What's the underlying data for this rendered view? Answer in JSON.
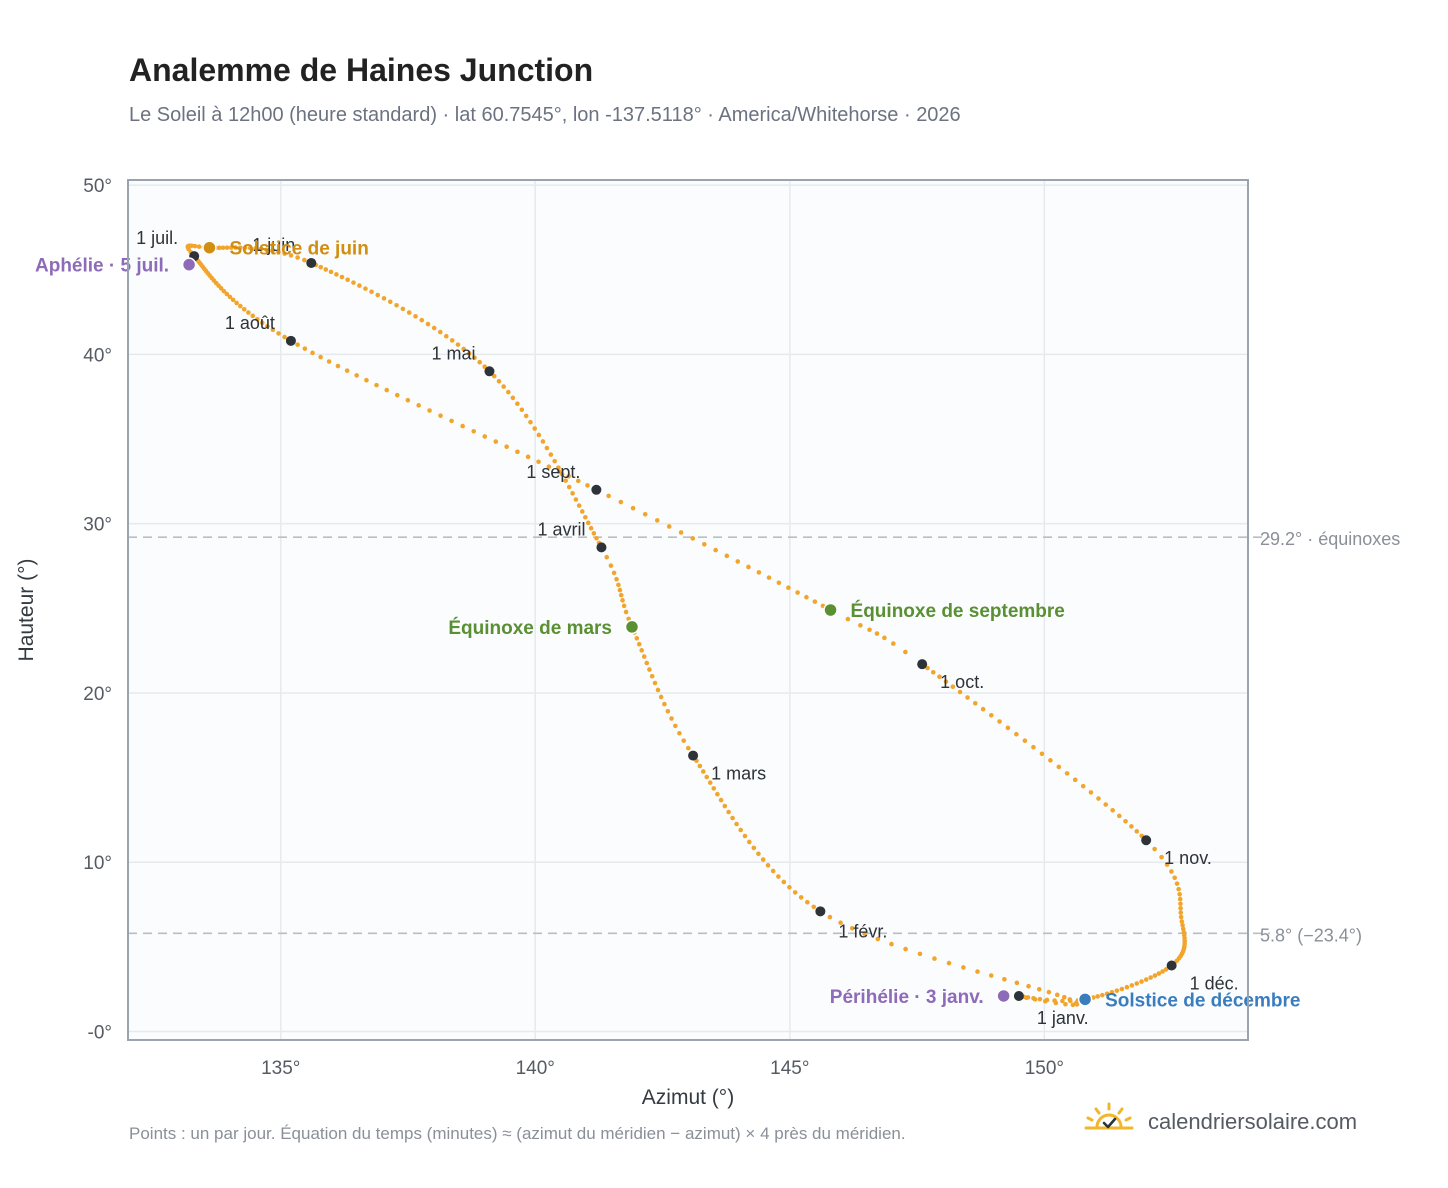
{
  "header": {
    "title": "Analemme de Haines Junction",
    "subtitle": "Le Soleil à 12h00 (heure standard) · lat 60.7545°, lon -137.5118° · America/Whitehorse · 2026"
  },
  "footer": {
    "note": "Points : un par jour. Équation du temps (minutes) ≈ (azimut du méridien − azimut) × 4 près du méridien.",
    "brand": "calendriersolaire.com",
    "brand_icon": "sun-check-icon"
  },
  "colors": {
    "curve": "#f2a52a",
    "month_marker": "#2d3338",
    "equinox": "#5a8f33",
    "june_solstice": "#d18e10",
    "december_solstice": "#3a7dbf",
    "apsis": "#8e6bb8",
    "grid": "#e6eaef",
    "plot_background": "#fafcfe",
    "frame": "#9aa4ae",
    "reference_line": "#b8bec6"
  },
  "chart_data": {
    "type": "scatter",
    "xlabel": "Azimut (°)",
    "ylabel": "Hauteur (°)",
    "xlim": [
      132,
      154
    ],
    "ylim": [
      -0.5,
      50.3
    ],
    "x_ticks": [
      135,
      140,
      145,
      150
    ],
    "x_tick_labels": [
      "135°",
      "140°",
      "145°",
      "150°"
    ],
    "y_ticks": [
      0,
      10,
      20,
      30,
      40,
      50
    ],
    "y_tick_labels": [
      "-0°",
      "10°",
      "20°",
      "30°",
      "40°",
      "50°"
    ],
    "grid": true,
    "curve_anchors": [
      {
        "day": 0,
        "az": 149.5,
        "alt": 2.1
      },
      {
        "day": 10,
        "az": 150.5,
        "alt": 1.9
      },
      {
        "day": 31,
        "az": 145.6,
        "alt": 7.1
      },
      {
        "day": 59,
        "az": 143.1,
        "alt": 16.3
      },
      {
        "day": 78,
        "az": 141.9,
        "alt": 23.9
      },
      {
        "day": 90,
        "az": 141.3,
        "alt": 28.6
      },
      {
        "day": 120,
        "az": 139.1,
        "alt": 39.0
      },
      {
        "day": 151,
        "az": 135.6,
        "alt": 45.4
      },
      {
        "day": 171,
        "az": 133.6,
        "alt": 46.3
      },
      {
        "day": 181,
        "az": 133.3,
        "alt": 45.8
      },
      {
        "day": 212,
        "az": 135.2,
        "alt": 40.8
      },
      {
        "day": 243,
        "az": 141.2,
        "alt": 32.0
      },
      {
        "day": 265,
        "az": 145.8,
        "alt": 24.9
      },
      {
        "day": 273,
        "az": 147.6,
        "alt": 21.7
      },
      {
        "day": 304,
        "az": 152.0,
        "alt": 11.3
      },
      {
        "day": 318,
        "az": 152.7,
        "alt": 6.5
      },
      {
        "day": 334,
        "az": 152.5,
        "alt": 3.9
      },
      {
        "day": 354,
        "az": 150.8,
        "alt": 1.9
      },
      {
        "day": 365,
        "az": 149.5,
        "alt": 2.1
      }
    ],
    "month_markers": [
      {
        "label": "1 janv.",
        "az": 149.5,
        "alt": 2.1,
        "anchor": "start",
        "dx": 18,
        "dy": 28
      },
      {
        "label": "1 févr.",
        "az": 145.6,
        "alt": 7.1,
        "anchor": "start",
        "dx": 18,
        "dy": 26
      },
      {
        "label": "1 mars",
        "az": 143.1,
        "alt": 16.3,
        "anchor": "start",
        "dx": 18,
        "dy": 24
      },
      {
        "label": "1 avril",
        "az": 141.3,
        "alt": 28.6,
        "anchor": "end",
        "dx": -16,
        "dy": -12
      },
      {
        "label": "1 mai",
        "az": 139.1,
        "alt": 39.0,
        "anchor": "end",
        "dx": -14,
        "dy": -12
      },
      {
        "label": "1 juin",
        "az": 135.6,
        "alt": 45.4,
        "anchor": "end",
        "dx": -16,
        "dy": -12
      },
      {
        "label": "1 juil.",
        "az": 133.3,
        "alt": 45.8,
        "anchor": "end",
        "dx": -16,
        "dy": -12
      },
      {
        "label": "1 août",
        "az": 135.2,
        "alt": 40.8,
        "anchor": "end",
        "dx": -16,
        "dy": -12
      },
      {
        "label": "1 sept.",
        "az": 141.2,
        "alt": 32.0,
        "anchor": "end",
        "dx": -16,
        "dy": -12
      },
      {
        "label": "1 oct.",
        "az": 147.6,
        "alt": 21.7,
        "anchor": "start",
        "dx": 18,
        "dy": 24
      },
      {
        "label": "1 nov.",
        "az": 152.0,
        "alt": 11.3,
        "anchor": "start",
        "dx": 18,
        "dy": 24
      },
      {
        "label": "1 déc.",
        "az": 152.5,
        "alt": 3.9,
        "anchor": "start",
        "dx": 18,
        "dy": 24
      }
    ],
    "events": [
      {
        "label": "Équinoxe de mars",
        "az": 141.9,
        "alt": 23.9,
        "color": "#5a8f33",
        "anchor": "end",
        "dx": -20,
        "dy": 7
      },
      {
        "label": "Équinoxe de septembre",
        "az": 145.8,
        "alt": 24.9,
        "color": "#5a8f33",
        "anchor": "start",
        "dx": 20,
        "dy": 7
      },
      {
        "label": "Solstice de juin",
        "az": 133.6,
        "alt": 46.3,
        "color": "#d18e10",
        "anchor": "start",
        "dx": 20,
        "dy": 7
      },
      {
        "label": "Solstice de décembre",
        "az": 150.8,
        "alt": 1.9,
        "color": "#3a7dbf",
        "anchor": "start",
        "dx": 20,
        "dy": 7
      },
      {
        "label": "Aphélie · 5 juil.",
        "az": 133.2,
        "alt": 45.3,
        "color": "#8e6bb8",
        "anchor": "end",
        "dx": -20,
        "dy": 7
      },
      {
        "label": "Périhélie · 3 janv.",
        "az": 149.2,
        "alt": 2.1,
        "color": "#8e6bb8",
        "anchor": "end",
        "dx": -20,
        "dy": 7
      }
    ],
    "reference_lines": [
      {
        "alt": 29.2,
        "label": "29.2° · équinoxes"
      },
      {
        "alt": 5.8,
        "label": "5.8° (−23.4°)"
      }
    ]
  }
}
